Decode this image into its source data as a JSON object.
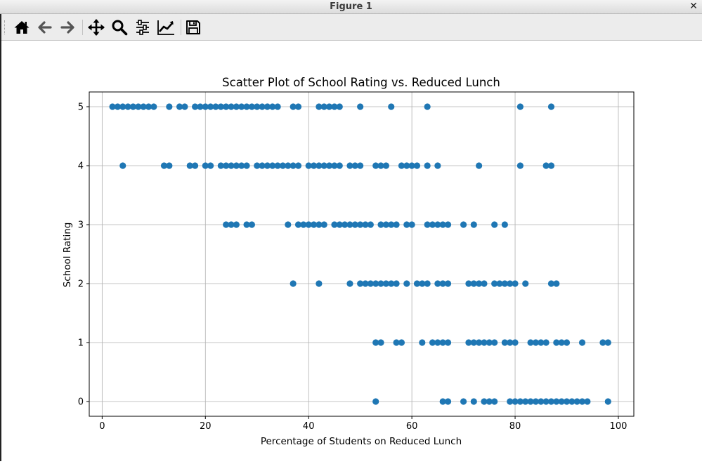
{
  "window": {
    "title": "Figure 1",
    "close_glyph": "✕"
  },
  "toolbar": {
    "buttons": [
      {
        "name": "home-button",
        "icon": "home-icon"
      },
      {
        "name": "back-button",
        "icon": "arrow-left-icon"
      },
      {
        "name": "forward-button",
        "icon": "arrow-right-icon"
      },
      {
        "name": "pan-button",
        "icon": "move-icon"
      },
      {
        "name": "zoom-button",
        "icon": "magnifier-icon"
      },
      {
        "name": "configure-subplots-button",
        "icon": "sliders-icon"
      },
      {
        "name": "edit-axis-button",
        "icon": "line-chart-icon"
      },
      {
        "name": "save-button",
        "icon": "floppy-disk-icon"
      }
    ]
  },
  "chart_data": {
    "type": "scatter",
    "title": "Scatter Plot of School Rating vs. Reduced Lunch",
    "xlabel": "Percentage of Students on Reduced Lunch",
    "ylabel": "School Rating",
    "xlim": [
      -2.5,
      103
    ],
    "ylim": [
      -0.25,
      5.25
    ],
    "xticks": [
      0,
      20,
      40,
      60,
      80,
      100
    ],
    "yticks": [
      0,
      1,
      2,
      3,
      4,
      5
    ],
    "grid": true,
    "marker_color": "#1f77b4",
    "series": [
      {
        "points": [
          [
            2,
            5
          ],
          [
            3,
            5
          ],
          [
            4,
            5
          ],
          [
            5,
            5
          ],
          [
            6,
            5
          ],
          [
            7,
            5
          ],
          [
            8,
            5
          ],
          [
            9,
            5
          ],
          [
            10,
            5
          ],
          [
            13,
            5
          ],
          [
            15,
            5
          ],
          [
            16,
            5
          ],
          [
            18,
            5
          ],
          [
            19,
            5
          ],
          [
            20,
            5
          ],
          [
            21,
            5
          ],
          [
            22,
            5
          ],
          [
            23,
            5
          ],
          [
            24,
            5
          ],
          [
            25,
            5
          ],
          [
            26,
            5
          ],
          [
            27,
            5
          ],
          [
            28,
            5
          ],
          [
            29,
            5
          ],
          [
            30,
            5
          ],
          [
            31,
            5
          ],
          [
            32,
            5
          ],
          [
            33,
            5
          ],
          [
            34,
            5
          ],
          [
            37,
            5
          ],
          [
            38,
            5
          ],
          [
            42,
            5
          ],
          [
            43,
            5
          ],
          [
            44,
            5
          ],
          [
            45,
            5
          ],
          [
            46,
            5
          ],
          [
            50,
            5
          ],
          [
            56,
            5
          ],
          [
            63,
            5
          ],
          [
            81,
            5
          ],
          [
            87,
            5
          ],
          [
            4,
            4
          ],
          [
            12,
            4
          ],
          [
            13,
            4
          ],
          [
            17,
            4
          ],
          [
            18,
            4
          ],
          [
            20,
            4
          ],
          [
            21,
            4
          ],
          [
            23,
            4
          ],
          [
            24,
            4
          ],
          [
            25,
            4
          ],
          [
            26,
            4
          ],
          [
            27,
            4
          ],
          [
            28,
            4
          ],
          [
            30,
            4
          ],
          [
            31,
            4
          ],
          [
            32,
            4
          ],
          [
            33,
            4
          ],
          [
            34,
            4
          ],
          [
            35,
            4
          ],
          [
            36,
            4
          ],
          [
            37,
            4
          ],
          [
            38,
            4
          ],
          [
            40,
            4
          ],
          [
            41,
            4
          ],
          [
            42,
            4
          ],
          [
            43,
            4
          ],
          [
            44,
            4
          ],
          [
            45,
            4
          ],
          [
            46,
            4
          ],
          [
            48,
            4
          ],
          [
            49,
            4
          ],
          [
            50,
            4
          ],
          [
            53,
            4
          ],
          [
            54,
            4
          ],
          [
            55,
            4
          ],
          [
            58,
            4
          ],
          [
            59,
            4
          ],
          [
            60,
            4
          ],
          [
            61,
            4
          ],
          [
            63,
            4
          ],
          [
            65,
            4
          ],
          [
            73,
            4
          ],
          [
            81,
            4
          ],
          [
            86,
            4
          ],
          [
            87,
            4
          ],
          [
            24,
            3
          ],
          [
            25,
            3
          ],
          [
            26,
            3
          ],
          [
            28,
            3
          ],
          [
            29,
            3
          ],
          [
            36,
            3
          ],
          [
            38,
            3
          ],
          [
            39,
            3
          ],
          [
            40,
            3
          ],
          [
            41,
            3
          ],
          [
            42,
            3
          ],
          [
            43,
            3
          ],
          [
            45,
            3
          ],
          [
            46,
            3
          ],
          [
            47,
            3
          ],
          [
            48,
            3
          ],
          [
            49,
            3
          ],
          [
            50,
            3
          ],
          [
            51,
            3
          ],
          [
            52,
            3
          ],
          [
            54,
            3
          ],
          [
            55,
            3
          ],
          [
            56,
            3
          ],
          [
            57,
            3
          ],
          [
            59,
            3
          ],
          [
            60,
            3
          ],
          [
            63,
            3
          ],
          [
            64,
            3
          ],
          [
            65,
            3
          ],
          [
            66,
            3
          ],
          [
            67,
            3
          ],
          [
            70,
            3
          ],
          [
            72,
            3
          ],
          [
            76,
            3
          ],
          [
            78,
            3
          ],
          [
            37,
            2
          ],
          [
            42,
            2
          ],
          [
            48,
            2
          ],
          [
            50,
            2
          ],
          [
            51,
            2
          ],
          [
            52,
            2
          ],
          [
            53,
            2
          ],
          [
            54,
            2
          ],
          [
            55,
            2
          ],
          [
            56,
            2
          ],
          [
            57,
            2
          ],
          [
            59,
            2
          ],
          [
            61,
            2
          ],
          [
            62,
            2
          ],
          [
            63,
            2
          ],
          [
            65,
            2
          ],
          [
            66,
            2
          ],
          [
            67,
            2
          ],
          [
            71,
            2
          ],
          [
            72,
            2
          ],
          [
            73,
            2
          ],
          [
            74,
            2
          ],
          [
            76,
            2
          ],
          [
            77,
            2
          ],
          [
            78,
            2
          ],
          [
            79,
            2
          ],
          [
            80,
            2
          ],
          [
            82,
            2
          ],
          [
            87,
            2
          ],
          [
            88,
            2
          ],
          [
            53,
            1
          ],
          [
            54,
            1
          ],
          [
            57,
            1
          ],
          [
            58,
            1
          ],
          [
            62,
            1
          ],
          [
            64,
            1
          ],
          [
            65,
            1
          ],
          [
            66,
            1
          ],
          [
            67,
            1
          ],
          [
            71,
            1
          ],
          [
            72,
            1
          ],
          [
            73,
            1
          ],
          [
            74,
            1
          ],
          [
            75,
            1
          ],
          [
            76,
            1
          ],
          [
            78,
            1
          ],
          [
            79,
            1
          ],
          [
            80,
            1
          ],
          [
            83,
            1
          ],
          [
            84,
            1
          ],
          [
            85,
            1
          ],
          [
            86,
            1
          ],
          [
            88,
            1
          ],
          [
            89,
            1
          ],
          [
            90,
            1
          ],
          [
            93,
            1
          ],
          [
            97,
            1
          ],
          [
            98,
            1
          ],
          [
            53,
            0
          ],
          [
            66,
            0
          ],
          [
            67,
            0
          ],
          [
            70,
            0
          ],
          [
            72,
            0
          ],
          [
            74,
            0
          ],
          [
            75,
            0
          ],
          [
            76,
            0
          ],
          [
            79,
            0
          ],
          [
            80,
            0
          ],
          [
            81,
            0
          ],
          [
            82,
            0
          ],
          [
            83,
            0
          ],
          [
            84,
            0
          ],
          [
            85,
            0
          ],
          [
            86,
            0
          ],
          [
            87,
            0
          ],
          [
            88,
            0
          ],
          [
            89,
            0
          ],
          [
            90,
            0
          ],
          [
            91,
            0
          ],
          [
            92,
            0
          ],
          [
            93,
            0
          ],
          [
            94,
            0
          ],
          [
            98,
            0
          ]
        ]
      }
    ]
  }
}
